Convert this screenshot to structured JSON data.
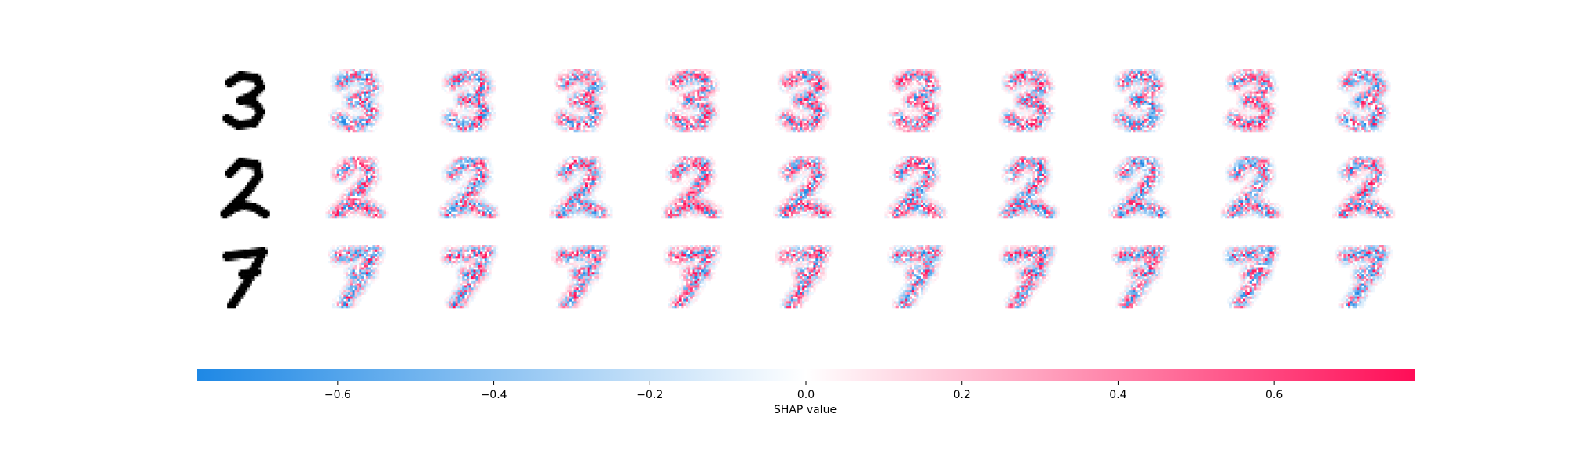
{
  "chart_data": {
    "type": "heatmap",
    "title": "",
    "rows": [
      {
        "digit": "3",
        "explanations": 10
      },
      {
        "digit": "2",
        "explanations": 10
      },
      {
        "digit": "7",
        "explanations": 10
      }
    ],
    "colorbar": {
      "label": "SHAP value",
      "range": [
        -0.78,
        0.78
      ],
      "ticks": [
        -0.6,
        -0.4,
        -0.2,
        0.0,
        0.2,
        0.4,
        0.6
      ],
      "tick_labels": [
        "−0.6",
        "−0.4",
        "−0.2",
        "0.0",
        "0.2",
        "0.4",
        "0.6"
      ],
      "colors": {
        "negative": "#1e88e5",
        "zero": "#ffffff",
        "positive": "#ff0d57"
      }
    }
  }
}
